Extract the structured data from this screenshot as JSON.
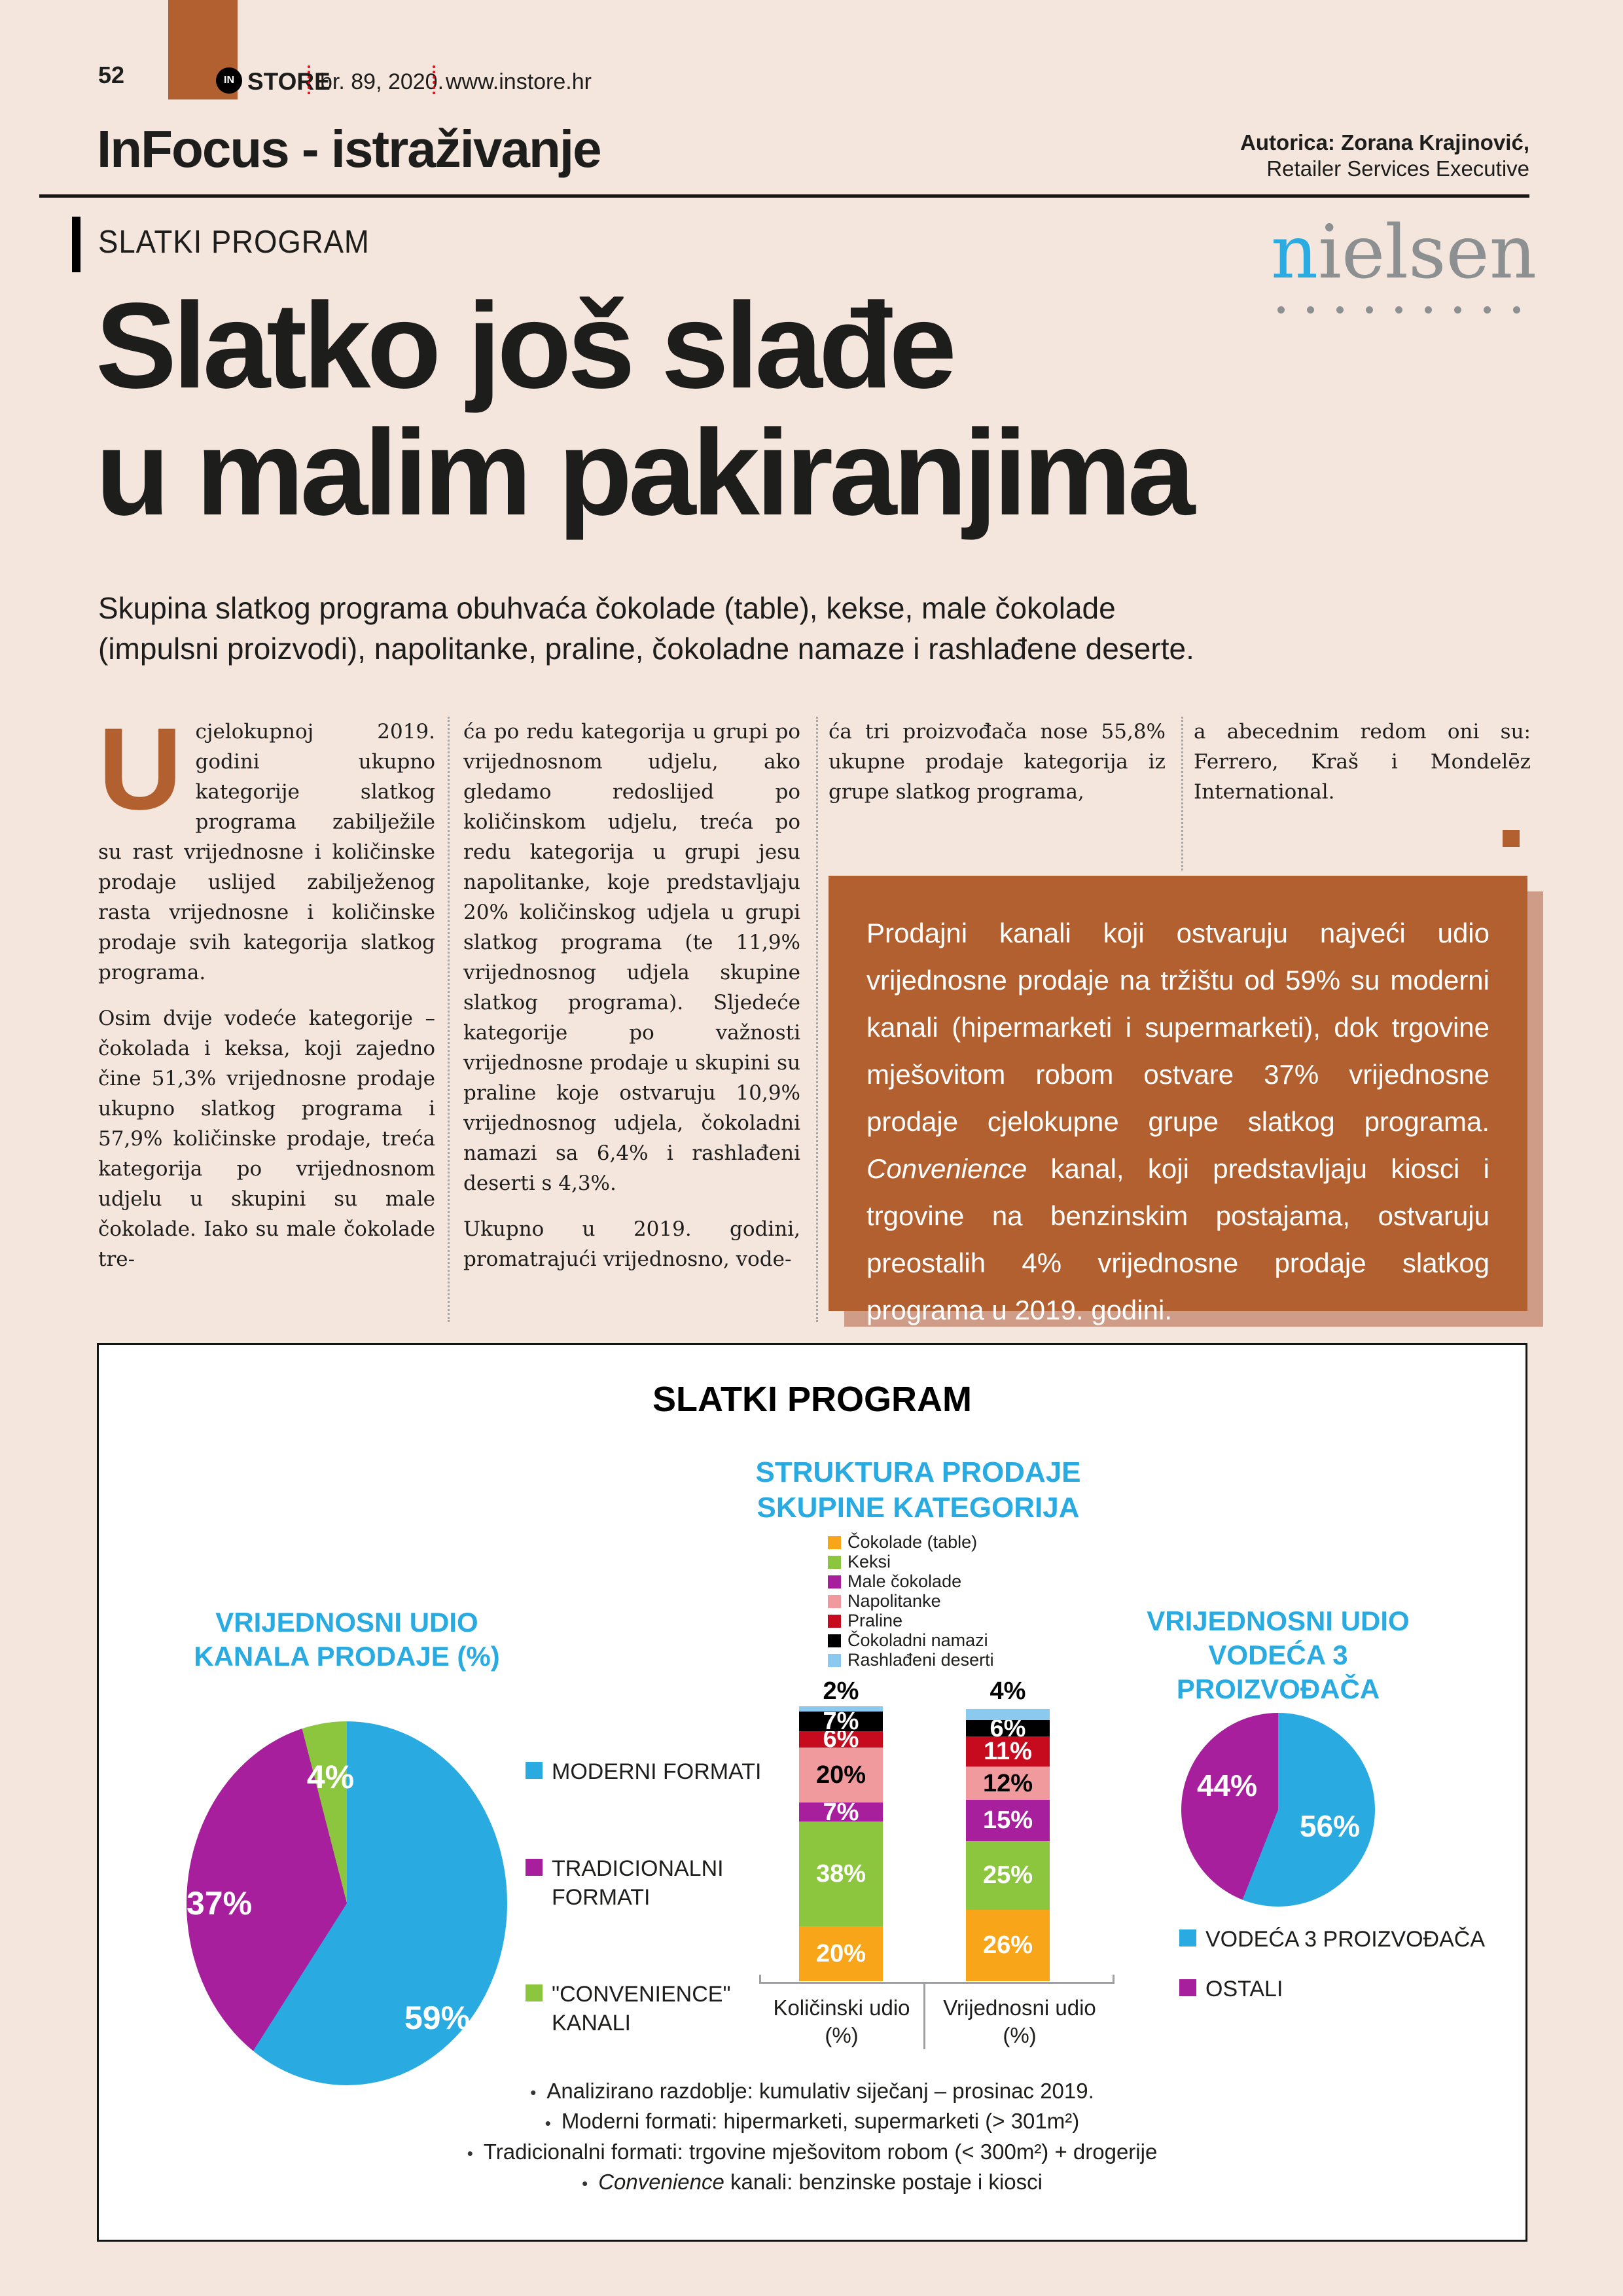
{
  "page": {
    "number": "52",
    "logo_in": "IN",
    "logo_store": "STORE",
    "issue": "br. 89, 2020.",
    "website": "www.instore.hr",
    "section_title": "InFocus - istraživanje",
    "author_line1": "Autorica: Zorana Krajinović,",
    "author_line2": "Retailer Services Executive",
    "kicker": "SLATKI PROGRAM",
    "brand_first_letter": "n",
    "brand_rest": "ielsen",
    "headline": "Slatko još slađe\nu malim pakiranjima",
    "subtitle": "Skupina slatkog programa obuhvaća čokolade (table), kekse, male čokolade\n(impulsni proizvodi), napolitanke, praline, čokoladne namaze i rashlađene deserte."
  },
  "article": {
    "dropcap": "U",
    "col1_para1": "cjelokupnoj 2019. godini ukupno kategorije slatkog programa zabilježile su rast vrijednosne i količinske prodaje uslijed zabilježenog rasta vrijednosne i količinske prodaje svih kategorija slatkog programa.",
    "col1_para2": "Osim dvije vodeće kategorije – čokolada i keksa, koji zajedno čine 51,3% vrijednosne prodaje ukupno slatkog programa i 57,9% količinske prodaje, treća kategorija po vrijednosnom udjelu u skupini su male čokolade. Iako su male čokolade tre-",
    "col2_para1": "ća po redu kategorija u grupi po vrijednosnom udjelu, ako gledamo redoslijed po količinskom udjelu, treća po redu kategorija u grupi jesu napolitanke, koje predstavljaju 20% količinskog udjela u grupi slatkog programa (te 11,9% vrijednosnog udjela skupine slatkog programa). Sljedeće kategorije po važnosti vrijednosne prodaje u skupini su praline koje ostvaruju 10,9% vrijednosnog udjela, čokoladni namazi sa 6,4% i rashlađeni deserti s 4,3%.",
    "col2_para2": "Ukupno u 2019. godini, promatrajući vrijednosno, vode-",
    "col3_para": "ća tri proizvođača nose 55,8% ukupne prodaje kategorija iz grupe slatkog programa,",
    "col4_para": "a abecednim redom oni su: Ferrero, Kraš i Mondelēz International.",
    "highlight_box": {
      "part1": "Prodajni kanali koji ostvaruju najveći udio vrijednosne prodaje na tržištu od 59% su moderni kanali (hipermarketi i supermarketi), dok trgovine mješovitom robom ostvare 37% vrijednosne prodaje cjelokupne grupe slatkog programa. ",
      "part2_italic": "Convenience",
      "part3": " kanal, koji predstavljaju kiosci i trgovine na benzinskim postajama, ostvaruju preostalih 4% vrijednosne prodaje slatkog programa u 2019. godini."
    }
  },
  "chart_panel": {
    "title": "SLATKI PROGRAM"
  },
  "chart_data": [
    {
      "type": "pie",
      "title": "VRIJEDNOSNI UDIO\nKANALA PRODAJE (%)",
      "legend_position": "right",
      "slices": [
        {
          "label": "MODERNI FORMATI",
          "value": 59,
          "color": "#29abe2"
        },
        {
          "label": "TRADICIONALNI FORMATI",
          "value": 37,
          "color": "#a81f9d"
        },
        {
          "label": "\"CONVENIENCE\" KANALI",
          "value": 4,
          "color": "#8cc63f"
        }
      ]
    },
    {
      "type": "bar",
      "subtype": "stacked-100-percent",
      "title": "STRUKTURA PRODAJE\nSKUPINE KATEGORIJA",
      "legend_position": "top",
      "categories": [
        "Količinski udio\n(%)",
        "Vrijednosni udio\n(%)"
      ],
      "ylim": [
        0,
        100
      ],
      "series": [
        {
          "name": "Čokolade (table)",
          "color": "#f9a51a",
          "values": [
            20,
            26
          ]
        },
        {
          "name": "Keksi",
          "color": "#8cc63f",
          "values": [
            38,
            25
          ]
        },
        {
          "name": "Male čokolade",
          "color": "#a81f9d",
          "values": [
            7,
            15
          ]
        },
        {
          "name": "Napolitanke",
          "color": "#f09a9e",
          "values": [
            20,
            12
          ],
          "label_dark": true
        },
        {
          "name": "Praline",
          "color": "#c60b1f",
          "values": [
            6,
            11
          ]
        },
        {
          "name": "Čokoladni namazi",
          "color": "#000000",
          "values": [
            7,
            6
          ]
        },
        {
          "name": "Rashlađeni deserti",
          "color": "#8cc9ee",
          "values": [
            2,
            4
          ],
          "label_above": true
        }
      ]
    },
    {
      "type": "pie",
      "title": "VRIJEDNOSNI UDIO\nVODEĆA 3\nPROIZVOĐAČA",
      "legend_position": "bottom",
      "slices": [
        {
          "label": "VODEĆA 3 PROIZVOĐAČA",
          "value": 56,
          "color": "#29abe2"
        },
        {
          "label": "OSTALI",
          "value": 44,
          "color": "#a81f9d"
        }
      ]
    }
  ],
  "footnotes_bullet": "•",
  "footnotes": [
    {
      "italic": "",
      "text": "Analizirano razdoblje: kumulativ siječanj – prosinac 2019."
    },
    {
      "italic": "",
      "text": "Moderni formati: hipermarketi, supermarketi (> 301m²)"
    },
    {
      "italic": "",
      "text": "Tradicionalni formati: trgovine mješovitom robom (< 300m²) + drogerije"
    },
    {
      "italic": "Convenience",
      "text": " kanali: benzinske postaje i kiosci"
    }
  ],
  "colors": {
    "page_bg": "#f5e6dd",
    "terracotta": "#b2602f",
    "box_shadow": "#cf9d87",
    "chart_cyan": "#29abe2",
    "magenta": "#a81f9d",
    "green": "#8cc63f",
    "orange": "#f9a51a",
    "pink": "#f09a9e",
    "red": "#c60b1f",
    "light_blue": "#8cc9ee",
    "header_red": "#e30613",
    "nielsen_gray": "#8d9091"
  }
}
